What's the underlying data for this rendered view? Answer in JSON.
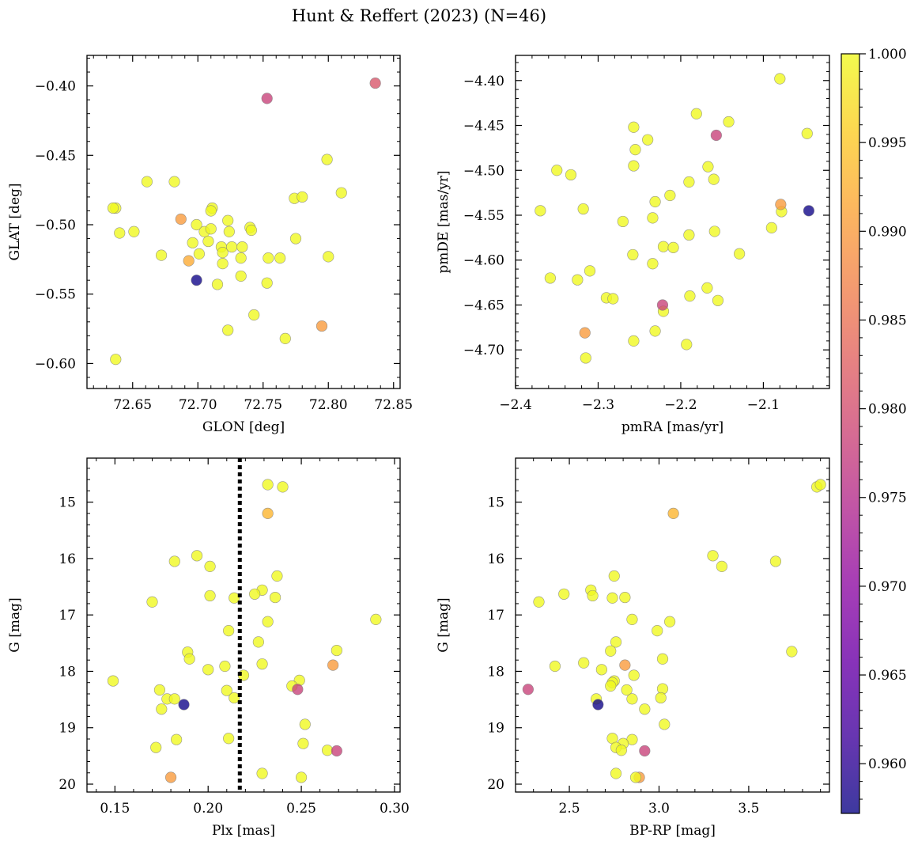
{
  "figure": {
    "title": "Hunt & Reffert (2023) (N=46)"
  },
  "colorbar": {
    "min": 0.9572,
    "max": 1.0,
    "ticks": [
      0.96,
      0.965,
      0.97,
      0.975,
      0.98,
      0.985,
      0.99,
      0.995,
      1.0
    ],
    "tick_labels": [
      "0.960",
      "0.965",
      "0.970",
      "0.975",
      "0.980",
      "0.985",
      "0.990",
      "0.995",
      "1.000"
    ],
    "colormap": "plasma",
    "alpha": 0.8
  },
  "colors": {
    "frame": "#000000",
    "marker_edge": "#808080",
    "parallax_line": "#000000",
    "background": "#ffffff"
  },
  "chart_data": [
    {
      "type": "scatter",
      "name": "glon-glat",
      "xlabel": "GLON [deg]",
      "ylabel": "GLAT [deg]",
      "xlim": [
        72.615,
        72.855
      ],
      "ylim": [
        -0.618,
        -0.378
      ],
      "y_inverted": false,
      "xticks": [
        72.65,
        72.7,
        72.75,
        72.8,
        72.85
      ],
      "xtick_labels": [
        "72.65",
        "72.70",
        "72.75",
        "72.80",
        "72.85"
      ],
      "yticks": [
        -0.4,
        -0.45,
        -0.5,
        -0.55,
        -0.6
      ],
      "ytick_labels": [
        "−0.40",
        "−0.45",
        "−0.50",
        "−0.55",
        "−0.60"
      ],
      "points": [
        {
          "x": 72.637,
          "y": -0.488,
          "c": 1.0
        },
        {
          "x": 72.635,
          "y": -0.488,
          "c": 1.0
        },
        {
          "x": 72.64,
          "y": -0.506,
          "c": 1.0
        },
        {
          "x": 72.651,
          "y": -0.505,
          "c": 1.0
        },
        {
          "x": 72.661,
          "y": -0.469,
          "c": 1.0
        },
        {
          "x": 72.672,
          "y": -0.522,
          "c": 1.0
        },
        {
          "x": 72.682,
          "y": -0.469,
          "c": 1.0
        },
        {
          "x": 72.687,
          "y": -0.496,
          "c": 0.99
        },
        {
          "x": 72.693,
          "y": -0.526,
          "c": 0.992
        },
        {
          "x": 72.696,
          "y": -0.513,
          "c": 1.0
        },
        {
          "x": 72.699,
          "y": -0.5,
          "c": 1.0
        },
        {
          "x": 72.701,
          "y": -0.521,
          "c": 1.0
        },
        {
          "x": 72.705,
          "y": -0.505,
          "c": 1.0
        },
        {
          "x": 72.708,
          "y": -0.512,
          "c": 1.0
        },
        {
          "x": 72.711,
          "y": -0.488,
          "c": 1.0
        },
        {
          "x": 72.71,
          "y": -0.49,
          "c": 1.0
        },
        {
          "x": 72.71,
          "y": -0.503,
          "c": 1.0
        },
        {
          "x": 72.715,
          "y": -0.543,
          "c": 1.0
        },
        {
          "x": 72.718,
          "y": -0.516,
          "c": 1.0
        },
        {
          "x": 72.719,
          "y": -0.52,
          "c": 1.0
        },
        {
          "x": 72.719,
          "y": -0.528,
          "c": 1.0
        },
        {
          "x": 72.723,
          "y": -0.497,
          "c": 1.0
        },
        {
          "x": 72.724,
          "y": -0.505,
          "c": 1.0
        },
        {
          "x": 72.726,
          "y": -0.516,
          "c": 1.0
        },
        {
          "x": 72.733,
          "y": -0.524,
          "c": 1.0
        },
        {
          "x": 72.734,
          "y": -0.516,
          "c": 1.0
        },
        {
          "x": 72.733,
          "y": -0.537,
          "c": 1.0
        },
        {
          "x": 72.74,
          "y": -0.502,
          "c": 1.0
        },
        {
          "x": 72.741,
          "y": -0.504,
          "c": 1.0
        },
        {
          "x": 72.743,
          "y": -0.565,
          "c": 1.0
        },
        {
          "x": 72.723,
          "y": -0.576,
          "c": 1.0
        },
        {
          "x": 72.754,
          "y": -0.524,
          "c": 1.0
        },
        {
          "x": 72.753,
          "y": -0.542,
          "c": 1.0
        },
        {
          "x": 72.763,
          "y": -0.524,
          "c": 1.0
        },
        {
          "x": 72.767,
          "y": -0.582,
          "c": 1.0
        },
        {
          "x": 72.774,
          "y": -0.481,
          "c": 1.0
        },
        {
          "x": 72.78,
          "y": -0.48,
          "c": 1.0
        },
        {
          "x": 72.775,
          "y": -0.51,
          "c": 1.0
        },
        {
          "x": 72.8,
          "y": -0.523,
          "c": 1.0
        },
        {
          "x": 72.799,
          "y": -0.453,
          "c": 1.0
        },
        {
          "x": 72.81,
          "y": -0.477,
          "c": 1.0
        },
        {
          "x": 72.795,
          "y": -0.573,
          "c": 0.99
        },
        {
          "x": 72.637,
          "y": -0.597,
          "c": 1.0
        },
        {
          "x": 72.753,
          "y": -0.409,
          "c": 0.978
        },
        {
          "x": 72.836,
          "y": -0.398,
          "c": 0.981
        },
        {
          "x": 72.699,
          "y": -0.54,
          "c": 0.9575
        }
      ]
    },
    {
      "type": "scatter",
      "name": "pmra-pmde",
      "xlabel": "pmRA [mas/yr]",
      "ylabel": "pmDE [mas/yr]",
      "xlim": [
        -2.4,
        -2.02
      ],
      "ylim": [
        -4.743,
        -4.372
      ],
      "y_inverted": false,
      "xticks": [
        -2.4,
        -2.3,
        -2.2,
        -2.1
      ],
      "xtick_labels": [
        "−2.4",
        "−2.3",
        "−2.2",
        "−2.1"
      ],
      "yticks": [
        -4.4,
        -4.45,
        -4.5,
        -4.55,
        -4.6,
        -4.65,
        -4.7
      ],
      "ytick_labels": [
        "−4.40",
        "−4.45",
        "−4.50",
        "−4.55",
        "−4.60",
        "−4.65",
        "−4.70"
      ],
      "points": [
        {
          "x": -2.37,
          "y": -4.545,
          "c": 1.0
        },
        {
          "x": -2.35,
          "y": -4.5,
          "c": 1.0
        },
        {
          "x": -2.333,
          "y": -4.505,
          "c": 1.0
        },
        {
          "x": -2.318,
          "y": -4.543,
          "c": 1.0
        },
        {
          "x": -2.358,
          "y": -4.62,
          "c": 1.0
        },
        {
          "x": -2.325,
          "y": -4.622,
          "c": 1.0
        },
        {
          "x": -2.31,
          "y": -4.612,
          "c": 1.0
        },
        {
          "x": -2.29,
          "y": -4.642,
          "c": 1.0
        },
        {
          "x": -2.282,
          "y": -4.643,
          "c": 1.0
        },
        {
          "x": -2.315,
          "y": -4.709,
          "c": 1.0
        },
        {
          "x": -2.316,
          "y": -4.681,
          "c": 0.99
        },
        {
          "x": -2.27,
          "y": -4.557,
          "c": 1.0
        },
        {
          "x": -2.257,
          "y": -4.452,
          "c": 1.0
        },
        {
          "x": -2.255,
          "y": -4.477,
          "c": 1.0
        },
        {
          "x": -2.257,
          "y": -4.495,
          "c": 1.0
        },
        {
          "x": -2.24,
          "y": -4.466,
          "c": 1.0
        },
        {
          "x": -2.234,
          "y": -4.553,
          "c": 1.0
        },
        {
          "x": -2.231,
          "y": -4.535,
          "c": 1.0
        },
        {
          "x": -2.258,
          "y": -4.594,
          "c": 1.0
        },
        {
          "x": -2.234,
          "y": -4.604,
          "c": 1.0
        },
        {
          "x": -2.221,
          "y": -4.585,
          "c": 1.0
        },
        {
          "x": -2.213,
          "y": -4.528,
          "c": 1.0
        },
        {
          "x": -2.209,
          "y": -4.586,
          "c": 1.0
        },
        {
          "x": -2.221,
          "y": -4.657,
          "c": 1.0
        },
        {
          "x": -2.222,
          "y": -4.65,
          "c": 0.978
        },
        {
          "x": -2.231,
          "y": -4.679,
          "c": 1.0
        },
        {
          "x": -2.257,
          "y": -4.69,
          "c": 1.0
        },
        {
          "x": -2.19,
          "y": -4.513,
          "c": 1.0
        },
        {
          "x": -2.19,
          "y": -4.572,
          "c": 1.0
        },
        {
          "x": -2.189,
          "y": -4.64,
          "c": 1.0
        },
        {
          "x": -2.193,
          "y": -4.694,
          "c": 1.0
        },
        {
          "x": -2.181,
          "y": -4.437,
          "c": 1.0
        },
        {
          "x": -2.167,
          "y": -4.496,
          "c": 1.0
        },
        {
          "x": -2.168,
          "y": -4.631,
          "c": 1.0
        },
        {
          "x": -2.16,
          "y": -4.51,
          "c": 1.0
        },
        {
          "x": -2.159,
          "y": -4.568,
          "c": 1.0
        },
        {
          "x": -2.155,
          "y": -4.645,
          "c": 1.0
        },
        {
          "x": -2.142,
          "y": -4.446,
          "c": 1.0
        },
        {
          "x": -2.157,
          "y": -4.461,
          "c": 0.978
        },
        {
          "x": -2.129,
          "y": -4.593,
          "c": 1.0
        },
        {
          "x": -2.09,
          "y": -4.564,
          "c": 1.0
        },
        {
          "x": -2.08,
          "y": -4.398,
          "c": 1.0
        },
        {
          "x": -2.078,
          "y": -4.546,
          "c": 1.0
        },
        {
          "x": -2.079,
          "y": -4.538,
          "c": 0.99
        },
        {
          "x": -2.047,
          "y": -4.459,
          "c": 1.0
        },
        {
          "x": -2.045,
          "y": -4.545,
          "c": 0.9575
        }
      ]
    },
    {
      "type": "scatter",
      "name": "plx-g",
      "xlabel": "Plx [mas]",
      "ylabel": "G [mag]",
      "xlim": [
        0.135,
        0.303
      ],
      "ylim": [
        20.14,
        14.22
      ],
      "y_inverted": true,
      "xticks": [
        0.15,
        0.2,
        0.25,
        0.3
      ],
      "xtick_labels": [
        "0.15",
        "0.20",
        "0.25",
        "0.30"
      ],
      "yticks": [
        15,
        16,
        17,
        18,
        19,
        20
      ],
      "ytick_labels": [
        "15",
        "16",
        "17",
        "18",
        "19",
        "20"
      ],
      "vline": {
        "x": 0.217,
        "style": "dotted"
      },
      "points": [
        {
          "x": 0.232,
          "y": 14.69,
          "c": 1.0
        },
        {
          "x": 0.24,
          "y": 14.73,
          "c": 1.0
        },
        {
          "x": 0.232,
          "y": 15.2,
          "c": 0.993
        },
        {
          "x": 0.194,
          "y": 15.95,
          "c": 1.0
        },
        {
          "x": 0.182,
          "y": 16.05,
          "c": 1.0
        },
        {
          "x": 0.201,
          "y": 16.14,
          "c": 1.0
        },
        {
          "x": 0.237,
          "y": 16.31,
          "c": 1.0
        },
        {
          "x": 0.229,
          "y": 16.56,
          "c": 1.0
        },
        {
          "x": 0.225,
          "y": 16.63,
          "c": 1.0
        },
        {
          "x": 0.201,
          "y": 16.66,
          "c": 1.0
        },
        {
          "x": 0.214,
          "y": 16.7,
          "c": 1.0
        },
        {
          "x": 0.236,
          "y": 16.69,
          "c": 1.0
        },
        {
          "x": 0.17,
          "y": 16.77,
          "c": 1.0
        },
        {
          "x": 0.29,
          "y": 17.08,
          "c": 1.0
        },
        {
          "x": 0.232,
          "y": 17.12,
          "c": 1.0
        },
        {
          "x": 0.211,
          "y": 17.28,
          "c": 1.0
        },
        {
          "x": 0.227,
          "y": 17.48,
          "c": 1.0
        },
        {
          "x": 0.269,
          "y": 17.63,
          "c": 1.0
        },
        {
          "x": 0.189,
          "y": 17.66,
          "c": 1.0
        },
        {
          "x": 0.19,
          "y": 17.78,
          "c": 1.0
        },
        {
          "x": 0.229,
          "y": 17.87,
          "c": 1.0
        },
        {
          "x": 0.267,
          "y": 17.89,
          "c": 0.99
        },
        {
          "x": 0.209,
          "y": 17.91,
          "c": 1.0
        },
        {
          "x": 0.2,
          "y": 17.97,
          "c": 1.0
        },
        {
          "x": 0.219,
          "y": 18.07,
          "c": 1.0
        },
        {
          "x": 0.149,
          "y": 18.17,
          "c": 1.0
        },
        {
          "x": 0.249,
          "y": 18.16,
          "c": 1.0
        },
        {
          "x": 0.245,
          "y": 18.26,
          "c": 1.0
        },
        {
          "x": 0.248,
          "y": 18.32,
          "c": 0.978
        },
        {
          "x": 0.174,
          "y": 18.33,
          "c": 1.0
        },
        {
          "x": 0.21,
          "y": 18.34,
          "c": 1.0
        },
        {
          "x": 0.214,
          "y": 18.47,
          "c": 1.0
        },
        {
          "x": 0.178,
          "y": 18.49,
          "c": 1.0
        },
        {
          "x": 0.182,
          "y": 18.49,
          "c": 1.0
        },
        {
          "x": 0.187,
          "y": 18.59,
          "c": 0.9575
        },
        {
          "x": 0.175,
          "y": 18.67,
          "c": 1.0
        },
        {
          "x": 0.252,
          "y": 18.94,
          "c": 1.0
        },
        {
          "x": 0.211,
          "y": 19.19,
          "c": 1.0
        },
        {
          "x": 0.183,
          "y": 19.21,
          "c": 1.0
        },
        {
          "x": 0.251,
          "y": 19.28,
          "c": 1.0
        },
        {
          "x": 0.172,
          "y": 19.35,
          "c": 1.0
        },
        {
          "x": 0.264,
          "y": 19.4,
          "c": 1.0
        },
        {
          "x": 0.269,
          "y": 19.41,
          "c": 0.978
        },
        {
          "x": 0.229,
          "y": 19.81,
          "c": 1.0
        },
        {
          "x": 0.18,
          "y": 19.88,
          "c": 0.99
        },
        {
          "x": 0.25,
          "y": 19.88,
          "c": 1.0
        }
      ]
    },
    {
      "type": "scatter",
      "name": "bprp-g",
      "xlabel": "BP-RP [mag]",
      "ylabel": "G [mag]",
      "xlim": [
        2.2,
        3.95
      ],
      "ylim": [
        20.14,
        14.22
      ],
      "y_inverted": true,
      "xticks": [
        2.5,
        3.0,
        3.5
      ],
      "xtick_labels": [
        "2.5",
        "3.0",
        "3.5"
      ],
      "yticks": [
        15,
        16,
        17,
        18,
        19,
        20
      ],
      "ytick_labels": [
        "15",
        "16",
        "17",
        "18",
        "19",
        "20"
      ],
      "points": [
        {
          "x": 3.88,
          "y": 14.73,
          "c": 1.0
        },
        {
          "x": 3.9,
          "y": 14.69,
          "c": 1.0
        },
        {
          "x": 3.08,
          "y": 15.2,
          "c": 0.993
        },
        {
          "x": 3.3,
          "y": 15.95,
          "c": 1.0
        },
        {
          "x": 3.65,
          "y": 16.05,
          "c": 1.0
        },
        {
          "x": 3.35,
          "y": 16.14,
          "c": 1.0
        },
        {
          "x": 2.75,
          "y": 16.31,
          "c": 1.0
        },
        {
          "x": 2.62,
          "y": 16.56,
          "c": 1.0
        },
        {
          "x": 2.47,
          "y": 16.63,
          "c": 1.0
        },
        {
          "x": 2.63,
          "y": 16.66,
          "c": 1.0
        },
        {
          "x": 2.74,
          "y": 16.7,
          "c": 1.0
        },
        {
          "x": 2.81,
          "y": 16.69,
          "c": 1.0
        },
        {
          "x": 2.33,
          "y": 16.77,
          "c": 1.0
        },
        {
          "x": 2.85,
          "y": 17.08,
          "c": 1.0
        },
        {
          "x": 3.06,
          "y": 17.12,
          "c": 1.0
        },
        {
          "x": 2.99,
          "y": 17.28,
          "c": 1.0
        },
        {
          "x": 2.76,
          "y": 17.48,
          "c": 1.0
        },
        {
          "x": 2.73,
          "y": 17.64,
          "c": 1.0
        },
        {
          "x": 3.74,
          "y": 17.65,
          "c": 1.0
        },
        {
          "x": 3.02,
          "y": 17.78,
          "c": 1.0
        },
        {
          "x": 2.58,
          "y": 17.85,
          "c": 1.0
        },
        {
          "x": 2.42,
          "y": 17.91,
          "c": 1.0
        },
        {
          "x": 2.81,
          "y": 17.89,
          "c": 0.99
        },
        {
          "x": 2.68,
          "y": 17.97,
          "c": 1.0
        },
        {
          "x": 2.86,
          "y": 18.07,
          "c": 1.0
        },
        {
          "x": 2.75,
          "y": 18.17,
          "c": 1.0
        },
        {
          "x": 2.74,
          "y": 18.2,
          "c": 1.0
        },
        {
          "x": 2.73,
          "y": 18.26,
          "c": 1.0
        },
        {
          "x": 2.27,
          "y": 18.32,
          "c": 0.978
        },
        {
          "x": 2.82,
          "y": 18.33,
          "c": 1.0
        },
        {
          "x": 3.02,
          "y": 18.31,
          "c": 1.0
        },
        {
          "x": 2.65,
          "y": 18.49,
          "c": 1.0
        },
        {
          "x": 2.85,
          "y": 18.49,
          "c": 1.0
        },
        {
          "x": 3.01,
          "y": 18.47,
          "c": 1.0
        },
        {
          "x": 2.66,
          "y": 18.59,
          "c": 0.9575
        },
        {
          "x": 2.92,
          "y": 18.67,
          "c": 1.0
        },
        {
          "x": 3.03,
          "y": 18.94,
          "c": 1.0
        },
        {
          "x": 2.74,
          "y": 19.19,
          "c": 1.0
        },
        {
          "x": 2.85,
          "y": 19.21,
          "c": 1.0
        },
        {
          "x": 2.8,
          "y": 19.28,
          "c": 1.0
        },
        {
          "x": 2.76,
          "y": 19.35,
          "c": 1.0
        },
        {
          "x": 2.79,
          "y": 19.4,
          "c": 1.0
        },
        {
          "x": 2.92,
          "y": 19.41,
          "c": 0.978
        },
        {
          "x": 2.76,
          "y": 19.81,
          "c": 1.0
        },
        {
          "x": 2.89,
          "y": 19.88,
          "c": 0.99
        },
        {
          "x": 2.87,
          "y": 19.88,
          "c": 1.0
        }
      ]
    }
  ]
}
